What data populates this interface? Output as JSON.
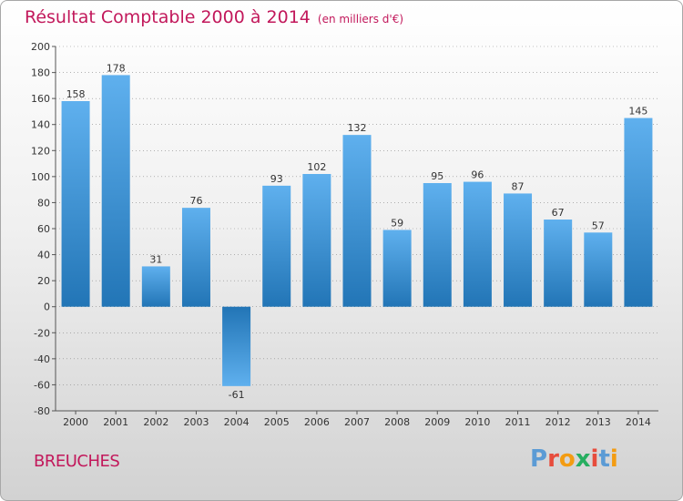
{
  "header": {
    "title": "Résultat Comptable 2000 à 2014",
    "subtitle": "(en milliers d'€)"
  },
  "footer": {
    "commune": "BREUCHES",
    "logo_text": "Proxiti",
    "logo_letters": [
      "P",
      "r",
      "o",
      "x",
      "i",
      "t",
      "i"
    ],
    "logo_colors": [
      "#5b9bd5",
      "#e74c3c",
      "#f39c12",
      "#27ae60",
      "#e74c3c",
      "#5b9bd5",
      "#f39c12"
    ]
  },
  "colors": {
    "title": "#c2185b",
    "bar_top": "#5fb0ee",
    "bar_bottom": "#2275b6",
    "axis": "#555555",
    "grid": "#888888"
  },
  "chart_data": {
    "type": "bar",
    "title": "Résultat Comptable 2000 à 2014",
    "subtitle": "(en milliers d'€)",
    "xlabel": "",
    "ylabel": "",
    "categories": [
      "2000",
      "2001",
      "2002",
      "2003",
      "2004",
      "2005",
      "2006",
      "2007",
      "2008",
      "2009",
      "2010",
      "2011",
      "2012",
      "2013",
      "2014"
    ],
    "values": [
      158,
      178,
      31,
      76,
      -61,
      93,
      102,
      132,
      59,
      95,
      96,
      87,
      67,
      57,
      145
    ],
    "ylim": [
      -80,
      200
    ],
    "yticks": [
      -80,
      -60,
      -40,
      -20,
      0,
      20,
      40,
      60,
      80,
      100,
      120,
      140,
      160,
      180,
      200
    ],
    "grid": true,
    "legend": "none"
  }
}
